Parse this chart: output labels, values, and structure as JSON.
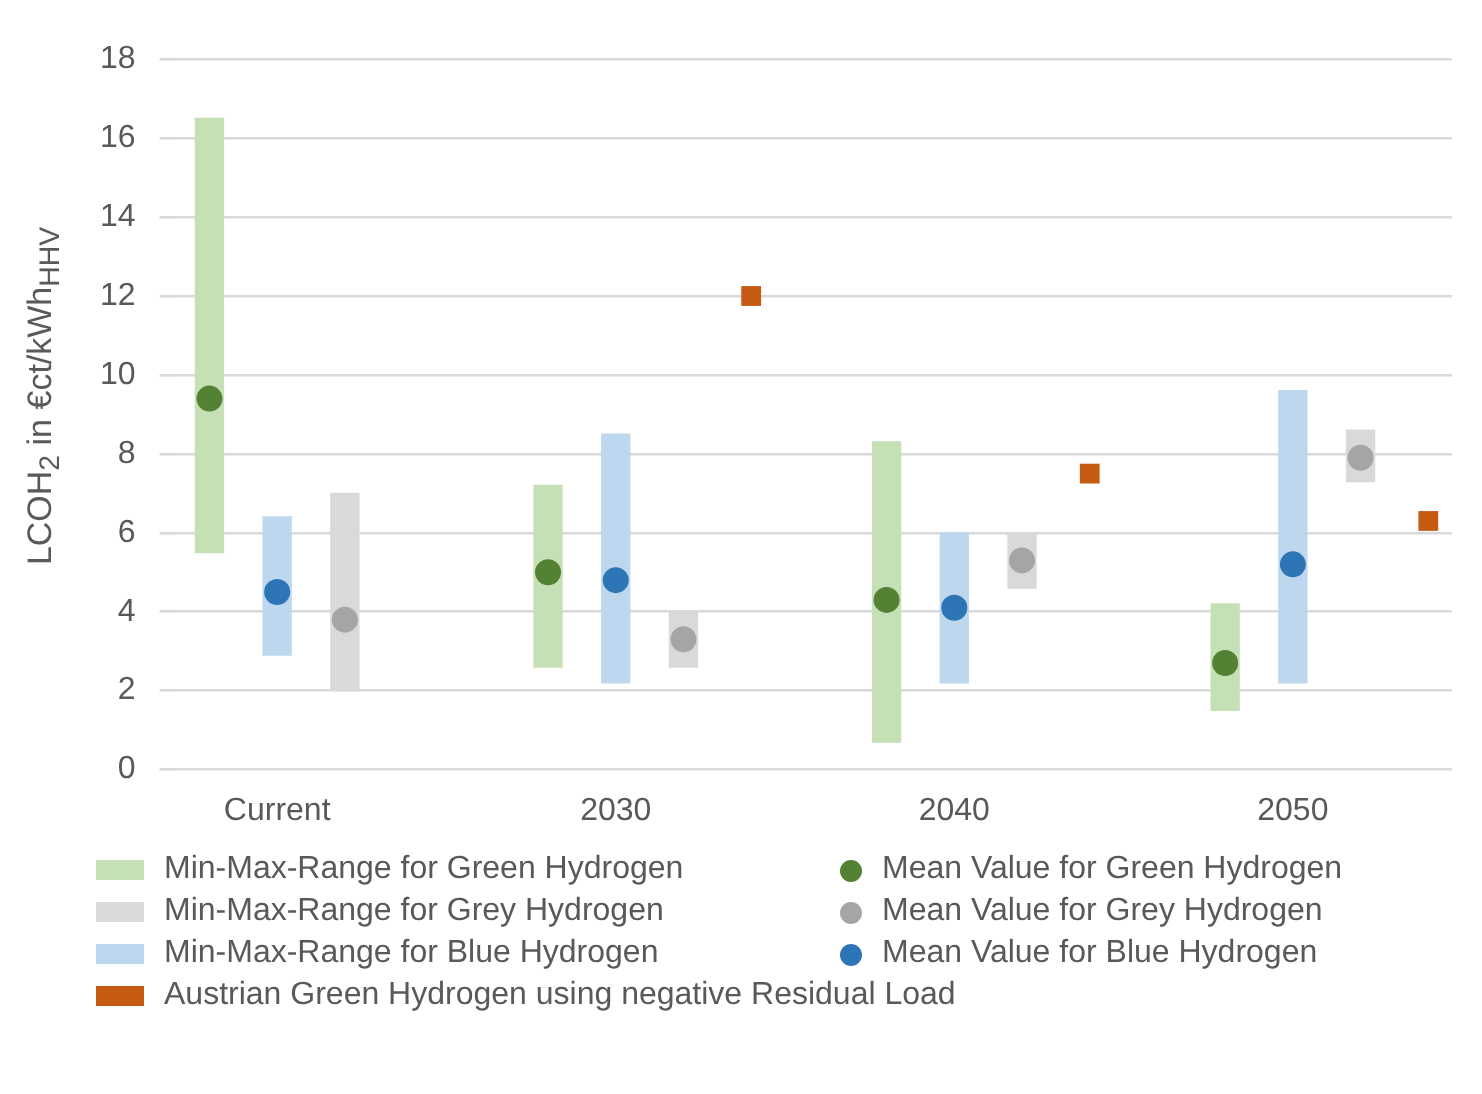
{
  "chart_data": {
    "type": "bar",
    "ylabel": "LCOH$_{2}$ in €ct/kWh$_{HHV}$",
    "categories": [
      "Current",
      "2030",
      "2040",
      "2050"
    ],
    "ylim": [
      0,
      18
    ],
    "yticks": [
      0,
      2,
      4,
      6,
      8,
      10,
      12,
      14,
      16,
      18
    ],
    "grid": "y",
    "legend": "bottom",
    "series": [
      {
        "name": "Min-Max-Range for Green Hydrogen",
        "color": "#c5e0b4",
        "base": [
          5.5,
          2.6,
          0.7,
          1.5
        ],
        "values": [
          11.0,
          4.6,
          7.6,
          2.7
        ]
      },
      {
        "name": "Mean Value for Green Hydrogen",
        "type": "scatter",
        "marker": "circle",
        "color": "#548235",
        "values": [
          9.4,
          5.0,
          4.3,
          2.7
        ]
      },
      {
        "name": "Min-Max-Range for Grey Hydrogen",
        "color": "#d9d9d9",
        "base": [
          2.0,
          2.6,
          4.6,
          7.3
        ],
        "values": [
          5.0,
          1.4,
          1.4,
          1.3
        ]
      },
      {
        "name": "Mean Value for Grey Hydrogen",
        "type": "scatter",
        "marker": "circle",
        "color": "#a5a5a5",
        "values": [
          3.8,
          3.3,
          5.3,
          7.9
        ]
      },
      {
        "name": "Min-Max-Range for Blue Hydrogen",
        "color": "#bdd7ee",
        "base": [
          2.9,
          2.2,
          2.2,
          2.2
        ],
        "values": [
          3.5,
          6.3,
          3.8,
          7.4
        ]
      },
      {
        "name": "Mean Value for Blue Hydrogen",
        "type": "scatter",
        "marker": "circle",
        "color": "#2e75b6",
        "values": [
          4.5,
          4.8,
          4.1,
          5.2
        ]
      },
      {
        "name": "Austrian Green Hydrogen using negative Residual Load",
        "type": "scatter",
        "marker": "square",
        "color": "#c55a11",
        "values": [
          null,
          12.0,
          7.5,
          6.3
        ]
      }
    ]
  }
}
